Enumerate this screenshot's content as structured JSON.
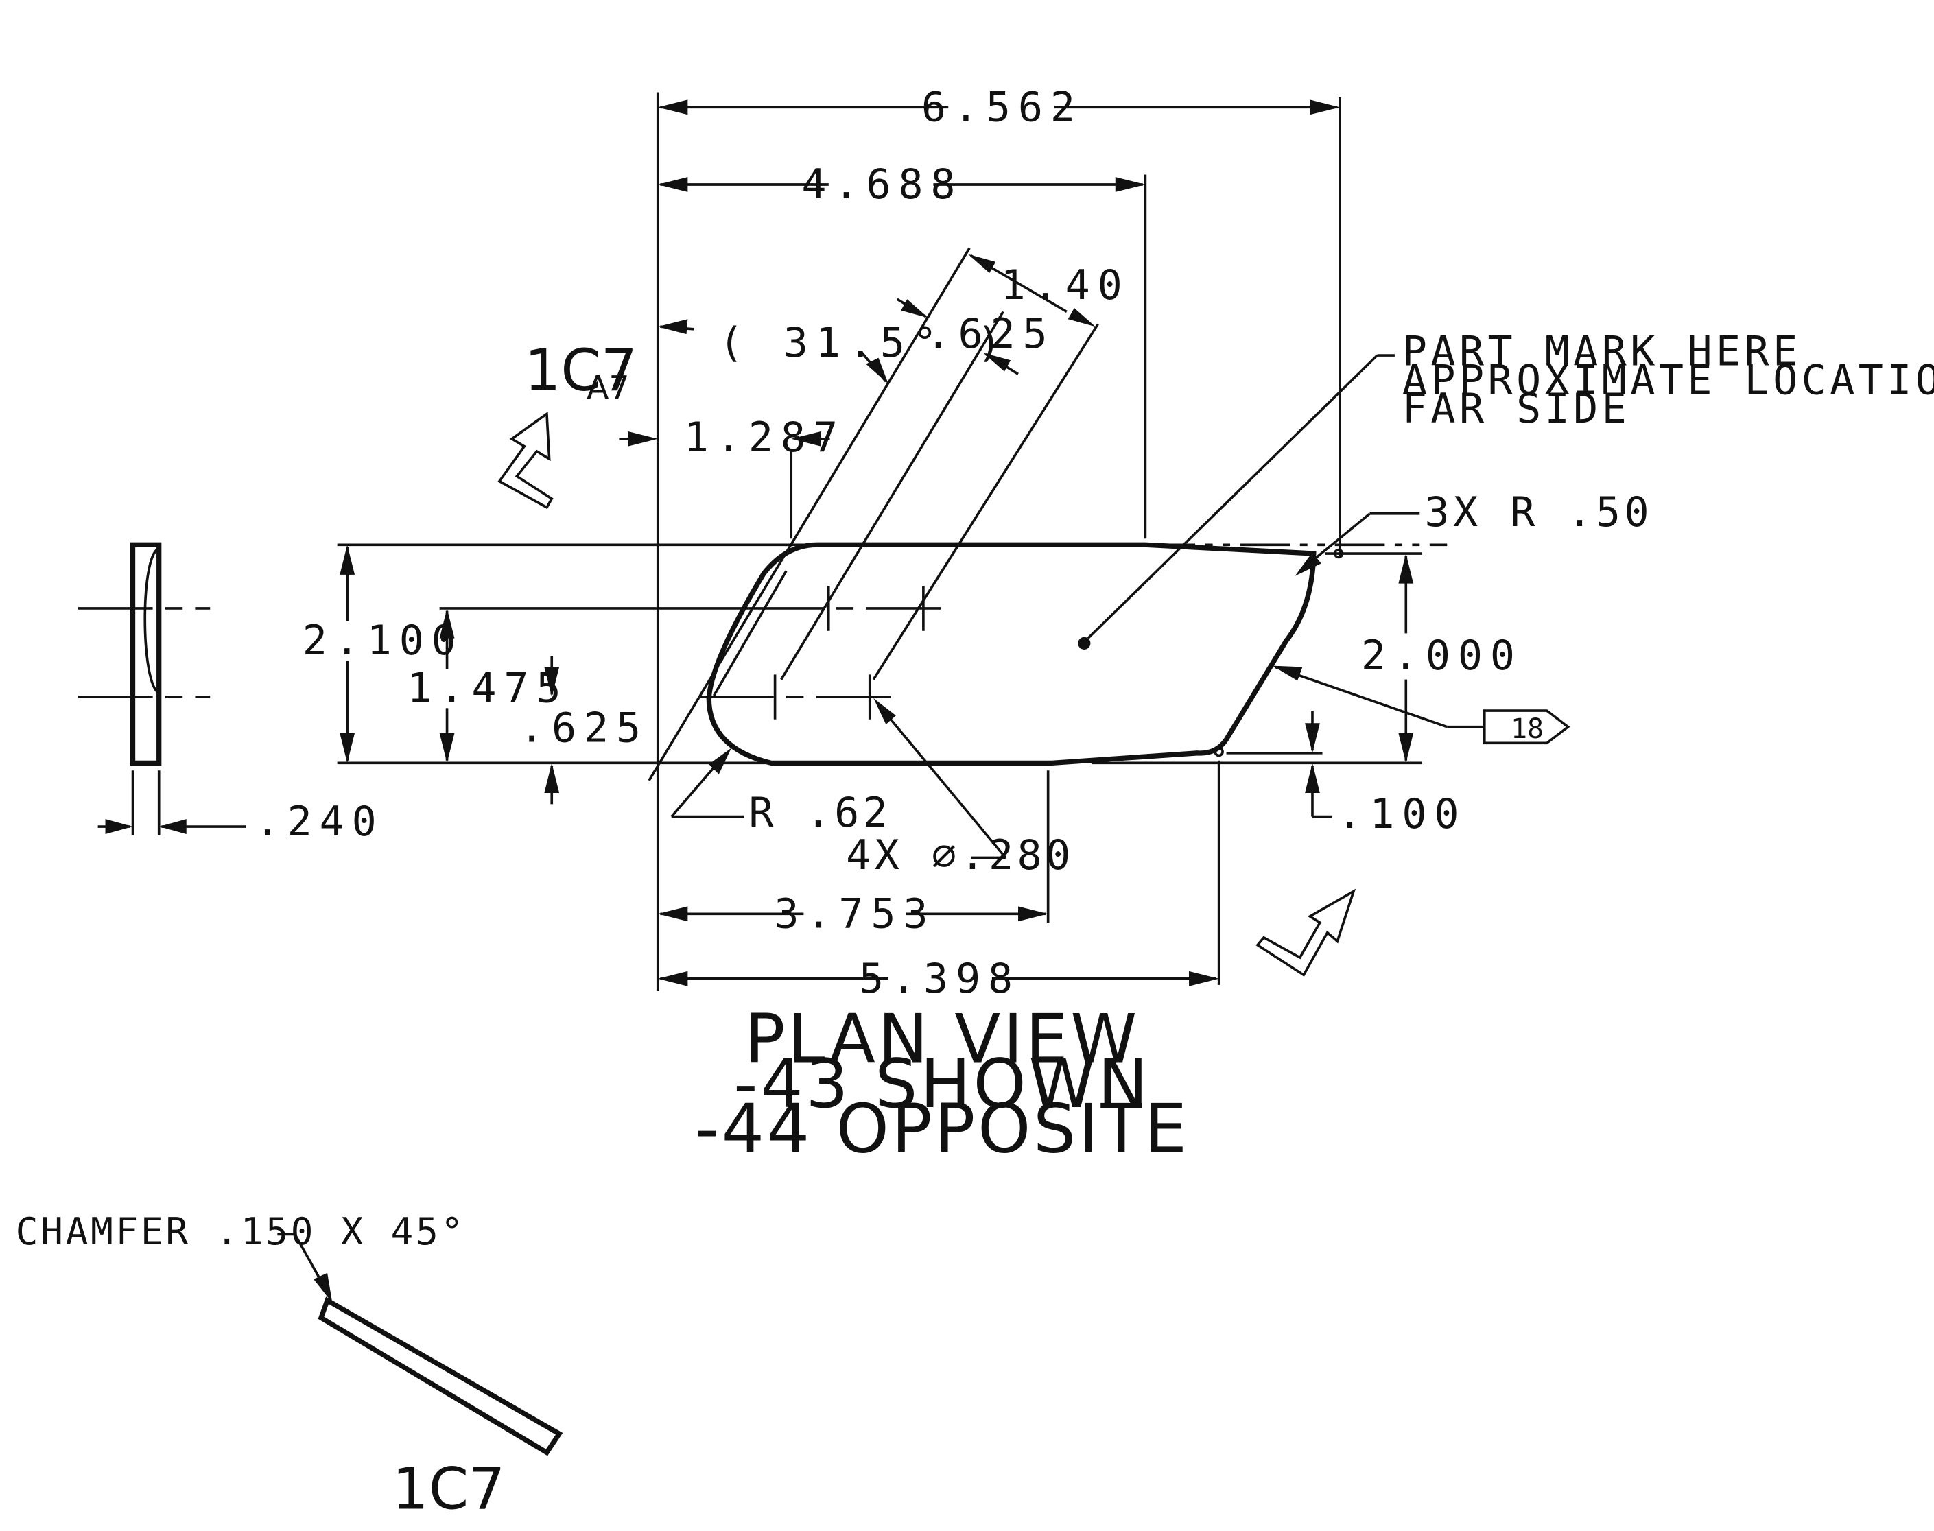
{
  "dimensions": {
    "overall_length": "6.562",
    "to_upper_tangent": "4.688",
    "hole_offset_diag": "1.40",
    "hole_spacing_diag": ".625",
    "angle": "( 31.5°  )",
    "offset_1287": "1.287",
    "width_overall": "2.100",
    "hole_row_upper": "1.475",
    "hole_row_lower": ".625",
    "thickness": ".240",
    "to_lower_tangent": "3.753",
    "to_right_lower": "5.398",
    "right_height": "2.000",
    "right_offset": ".100"
  },
  "callouts": {
    "corner_radii": "3X  R .50",
    "left_radius": "R .62",
    "holes": "4X ∅.280",
    "part_mark": [
      "PART MARK HERE",
      "APPROXIMATE LOCATION",
      "FAR SIDE"
    ],
    "flag_note": "18",
    "chamfer": "CHAMFER .150 X 45°"
  },
  "view_labels": {
    "section_ref_main": "1C7",
    "section_ref_sub": "A7",
    "plan_view": [
      "PLAN VIEW",
      "-43 SHOWN",
      "-44 OPPOSITE"
    ],
    "detail_ref": "1C7"
  },
  "icons": {
    "view_arrow": "view-direction-arrow-icon",
    "flag": "flag-note-icon"
  }
}
